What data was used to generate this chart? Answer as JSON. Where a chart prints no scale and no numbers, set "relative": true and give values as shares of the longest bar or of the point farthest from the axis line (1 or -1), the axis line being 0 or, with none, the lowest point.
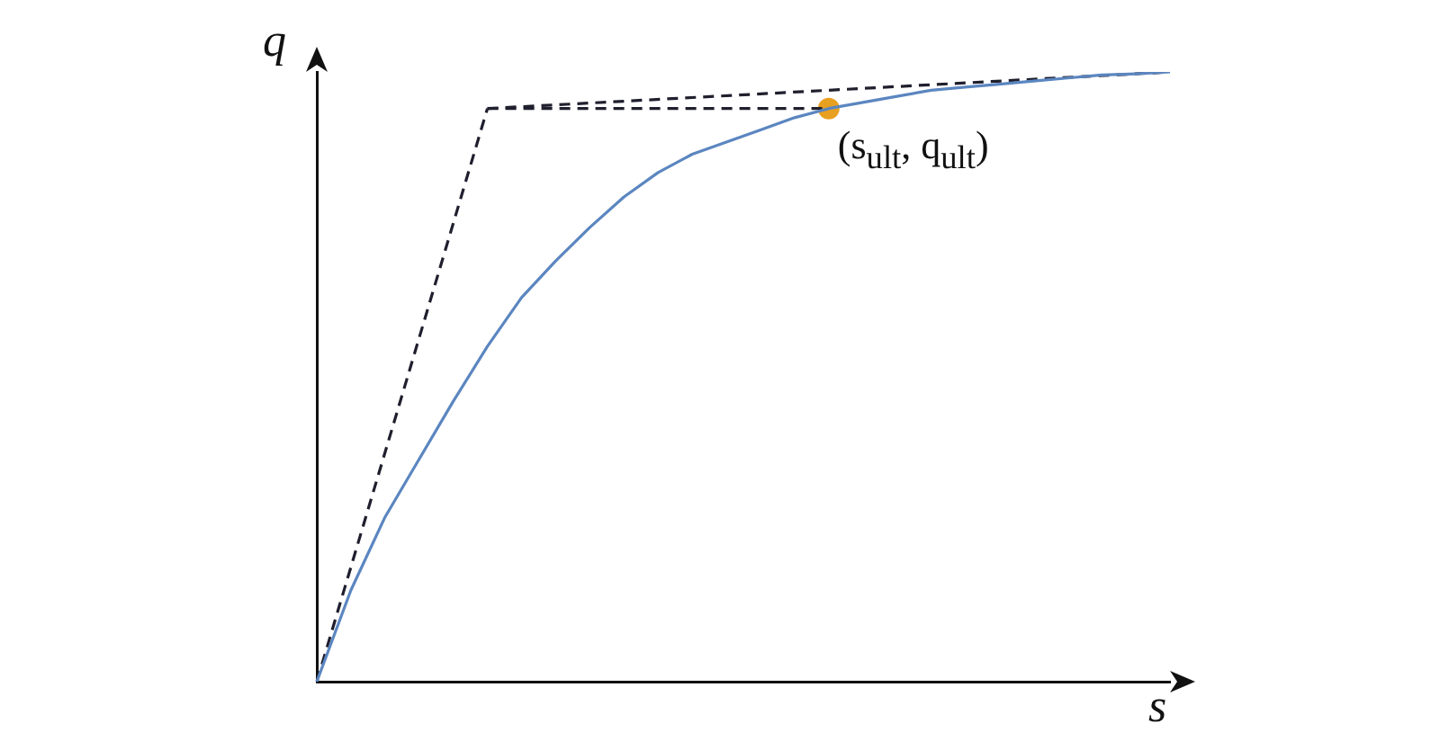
{
  "chart_data": {
    "type": "line",
    "xlabel": "s",
    "ylabel": "q",
    "relative": true,
    "grid": false,
    "legend": false,
    "marker": "none",
    "categories": [
      null,
      null,
      null,
      null,
      null,
      null,
      null,
      null,
      null,
      null,
      null,
      null,
      null,
      null,
      null,
      null,
      null,
      null,
      null,
      null,
      null,
      null,
      null,
      null,
      null,
      null
    ],
    "series": [
      {
        "color": "#5b86c0",
        "line_style": "solid",
        "values": [
          0,
          0.15,
          0.27,
          0.365,
          0.46,
          0.55,
          0.63,
          0.69,
          0.745,
          0.795,
          0.835,
          0.865,
          0.885,
          0.905,
          0.925,
          0.94,
          0.95,
          0.96,
          0.97,
          0.975,
          0.98,
          0.985,
          0.99,
          0.995,
          0.997,
          1
        ]
      },
      {
        "color": "#1f1f2e",
        "line_style": "dashed",
        "values": [
          0,
          null,
          null,
          null,
          null,
          0.94,
          null,
          null,
          null,
          null,
          null,
          null,
          null,
          null,
          null,
          null,
          null,
          null,
          null,
          null,
          null,
          null,
          null,
          null,
          null,
          null
        ]
      },
      {
        "color": "#1f1f2e",
        "line_style": "dashed",
        "values": [
          null,
          null,
          null,
          null,
          null,
          0.94,
          null,
          null,
          null,
          null,
          null,
          null,
          null,
          null,
          null,
          null,
          null,
          null,
          null,
          null,
          null,
          null,
          null,
          null,
          null,
          1
        ]
      },
      {
        "color": "#1f1f2e",
        "line_style": "dashed",
        "values": [
          null,
          null,
          null,
          null,
          null,
          0.94,
          null,
          null,
          null,
          null,
          null,
          null,
          null,
          null,
          null,
          0.94,
          null,
          null,
          null,
          null,
          null,
          null,
          null,
          null,
          null,
          null
        ]
      },
      {
        "type": "line",
        "color": "#e8a020",
        "marker": "circle",
        "values": [
          null,
          null,
          null,
          null,
          null,
          null,
          null,
          null,
          null,
          null,
          null,
          null,
          null,
          null,
          null,
          0.94,
          null,
          null,
          null,
          null,
          null,
          null,
          null,
          null,
          null,
          null
        ]
      }
    ],
    "annotations": [
      "(s$_{ult}$, q$_{ult}$)"
    ]
  }
}
